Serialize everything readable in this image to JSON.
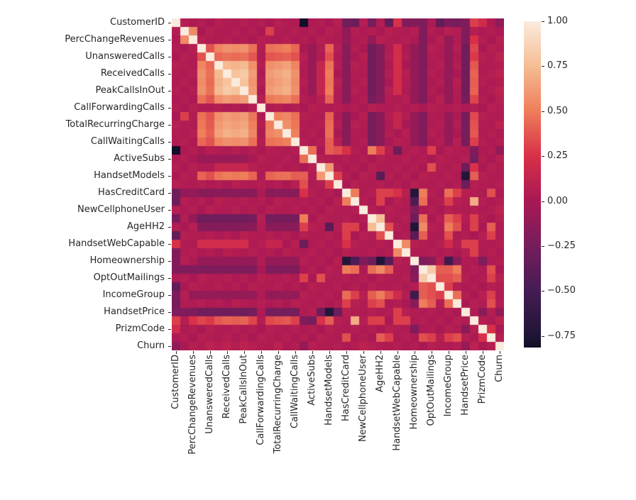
{
  "figure": {
    "background": "#ffffff",
    "tick_color": "#262626",
    "label_color": "#262626"
  },
  "chart_data": {
    "type": "heatmap",
    "title": "",
    "description": "Correlation matrix heatmap of telecom churn dataset features",
    "n": 39,
    "tick_every": 2,
    "tick_labels": [
      "CustomerID",
      "PercChangeRevenues",
      "UnansweredCalls",
      "ReceivedCalls",
      "PeakCallsInOut",
      "CallForwardingCalls",
      "TotalRecurringCharge",
      "CallWaitingCalls",
      "ActiveSubs",
      "HandsetModels",
      "HasCreditCard",
      "NewCellphoneUser",
      "AgeHH2",
      "HandsetWebCapable",
      "Homeownership",
      "OptOutMailings",
      "IncomeGroup",
      "HandsetPrice",
      "PrizmCode",
      "Churn"
    ],
    "vmin": -0.814,
    "vmax": 1.0,
    "colormap": {
      "name": "rocket",
      "stops": [
        {
          "v": -0.814,
          "color": "#120E26"
        },
        {
          "v": -0.75,
          "color": "#201537"
        },
        {
          "v": -0.5,
          "color": "#451C53"
        },
        {
          "v": -0.25,
          "color": "#761D5C"
        },
        {
          "v": 0.0,
          "color": "#A91855"
        },
        {
          "v": 0.25,
          "color": "#D83048"
        },
        {
          "v": 0.5,
          "color": "#EE7D5A"
        },
        {
          "v": 0.75,
          "color": "#F5BD94"
        },
        {
          "v": 1.0,
          "color": "#FAEBDD"
        }
      ]
    },
    "colorbar_ticks": [
      {
        "label": "1.00",
        "value": 1.0
      },
      {
        "label": "0.75",
        "value": 0.75
      },
      {
        "label": "0.50",
        "value": 0.5
      },
      {
        "label": "0.25",
        "value": 0.25
      },
      {
        "label": "0.00",
        "value": 0.0
      },
      {
        "label": "−0.25",
        "value": -0.25
      },
      {
        "label": "−0.50",
        "value": -0.5
      },
      {
        "label": "−0.75",
        "value": -0.75
      }
    ],
    "matrix_upper": [
      [
        1.0,
        0.06,
        0.02,
        0.05,
        0.01,
        0.07,
        0.04,
        0.03,
        0.06,
        0.02,
        0.05,
        0.01,
        0.07,
        0.04,
        0.03,
        -0.81,
        0.02,
        0.05,
        0.01,
        0.07,
        -0.28,
        -0.3,
        0.06,
        -0.25,
        0.05,
        -0.35,
        0.25,
        -0.2,
        -0.18,
        -0.2,
        0.02,
        -0.35,
        -0.22,
        -0.25,
        -0.2,
        0.3,
        0.2,
        0.02,
        -0.12
      ],
      [
        1.0,
        0.55,
        0.01,
        0.07,
        0.04,
        0.03,
        0.06,
        0.02,
        0.05,
        0.01,
        0.3,
        0.04,
        0.03,
        0.06,
        0.02,
        0.05,
        0.01,
        0.07,
        0.04,
        -0.12,
        0.06,
        0.02,
        0.05,
        0.01,
        0.07,
        0.04,
        0.03,
        0.06,
        -0.2,
        0.05,
        0.01,
        0.07,
        0.04,
        -0.2,
        0.06,
        0.02,
        0.05,
        0.01
      ],
      [
        1.0,
        0.07,
        0.04,
        0.03,
        0.06,
        0.02,
        0.05,
        0.01,
        0.07,
        0.04,
        0.03,
        0.06,
        0.02,
        0.05,
        0.01,
        0.07,
        0.04,
        0.03,
        -0.1,
        0.02,
        0.05,
        -0.1,
        0.07,
        0.04,
        0.03,
        0.06,
        0.02,
        -0.2,
        0.01,
        0.07,
        -0.1,
        0.03,
        -0.2,
        0.25,
        0.05,
        0.01,
        0.07
      ],
      [
        1.0,
        0.36,
        0.53,
        0.58,
        0.56,
        0.58,
        0.46,
        0.04,
        0.46,
        0.48,
        0.51,
        0.43,
        0.01,
        -0.08,
        0.04,
        0.42,
        0.06,
        -0.15,
        0.05,
        0.01,
        -0.28,
        -0.18,
        0.03,
        0.22,
        0.02,
        -0.1,
        -0.2,
        0.07,
        0.04,
        -0.1,
        0.06,
        -0.28,
        0.32,
        0.01,
        0.07,
        0.04
      ],
      [
        1.0,
        0.43,
        0.46,
        0.44,
        0.46,
        0.37,
        0.03,
        0.37,
        0.39,
        0.41,
        0.36,
        0.07,
        -0.08,
        0.03,
        0.35,
        0.02,
        -0.15,
        0.01,
        0.07,
        -0.28,
        -0.18,
        0.06,
        0.22,
        0.05,
        -0.1,
        -0.2,
        0.04,
        0.03,
        -0.1,
        0.02,
        -0.28,
        0.28,
        0.07,
        0.04,
        0.1
      ],
      [
        1.0,
        0.74,
        0.71,
        0.74,
        0.57,
        0.06,
        0.57,
        0.6,
        0.64,
        0.53,
        0.04,
        -0.08,
        0.15,
        0.47,
        0.05,
        -0.15,
        0.07,
        0.04,
        -0.28,
        -0.18,
        0.02,
        0.22,
        0.01,
        -0.1,
        -0.2,
        0.03,
        0.06,
        -0.1,
        0.05,
        -0.28,
        0.38,
        0.04,
        0.03,
        0.06
      ],
      [
        1.0,
        0.78,
        0.82,
        0.62,
        0.02,
        0.62,
        0.66,
        0.7,
        0.58,
        0.03,
        -0.08,
        0.15,
        0.5,
        0.01,
        -0.15,
        0.04,
        0.03,
        -0.28,
        -0.18,
        0.05,
        0.22,
        0.07,
        -0.1,
        -0.2,
        0.06,
        0.02,
        -0.1,
        0.01,
        -0.28,
        0.42,
        0.03,
        0.06,
        0.1
      ],
      [
        1.0,
        0.78,
        0.59,
        0.05,
        0.59,
        0.63,
        0.67,
        0.56,
        0.06,
        -0.08,
        0.15,
        0.48,
        0.07,
        -0.15,
        0.03,
        0.06,
        -0.28,
        -0.18,
        0.01,
        0.22,
        0.04,
        -0.1,
        -0.2,
        0.02,
        0.05,
        -0.1,
        0.07,
        -0.28,
        0.4,
        0.06,
        0.02,
        0.05
      ],
      [
        1.0,
        0.62,
        0.01,
        0.62,
        0.66,
        0.7,
        0.58,
        0.02,
        -0.08,
        0.15,
        0.5,
        0.04,
        -0.15,
        0.06,
        0.02,
        -0.28,
        -0.18,
        0.07,
        0.22,
        0.03,
        -0.1,
        -0.2,
        0.05,
        0.01,
        -0.1,
        0.04,
        -0.28,
        0.42,
        0.02,
        0.05,
        0.1
      ],
      [
        1.0,
        0.07,
        0.48,
        0.51,
        0.54,
        0.46,
        0.05,
        0.01,
        0.07,
        0.42,
        0.03,
        -0.15,
        0.02,
        0.05,
        -0.25,
        -0.15,
        0.04,
        0.03,
        0.06,
        -0.1,
        -0.2,
        0.01,
        0.07,
        -0.1,
        0.03,
        -0.25,
        0.32,
        0.05,
        0.01,
        0.07
      ],
      [
        1.0,
        0.03,
        0.06,
        0.02,
        0.05,
        0.01,
        0.07,
        0.04,
        0.03,
        0.06,
        0.02,
        0.05,
        0.01,
        0.07,
        0.04,
        0.03,
        0.06,
        0.02,
        0.05,
        0.01,
        0.07,
        0.04,
        0.03,
        0.06,
        0.02,
        0.05,
        0.01,
        0.07,
        0.04
      ],
      [
        1.0,
        0.51,
        0.54,
        0.46,
        0.07,
        0.04,
        0.03,
        0.42,
        0.02,
        -0.15,
        0.01,
        0.07,
        -0.25,
        -0.15,
        0.06,
        0.15,
        0.05,
        -0.1,
        -0.2,
        0.04,
        0.03,
        -0.1,
        0.02,
        -0.25,
        0.33,
        0.07,
        0.04,
        0.03
      ],
      [
        1.0,
        0.57,
        0.48,
        0.04,
        0.03,
        0.06,
        0.45,
        0.05,
        -0.15,
        0.07,
        0.04,
        -0.25,
        -0.15,
        0.02,
        0.15,
        0.01,
        -0.1,
        -0.2,
        0.03,
        0.06,
        -0.1,
        0.05,
        -0.25,
        0.36,
        0.04,
        0.03,
        0.1
      ],
      [
        1.0,
        0.51,
        0.03,
        0.06,
        0.02,
        0.46,
        0.01,
        -0.15,
        0.04,
        0.03,
        -0.25,
        -0.15,
        0.05,
        0.01,
        0.07,
        -0.1,
        -0.2,
        0.06,
        0.02,
        -0.1,
        0.01,
        -0.25,
        0.38,
        0.03,
        0.06,
        0.02
      ],
      [
        1.0,
        0.06,
        0.02,
        0.05,
        0.4,
        0.07,
        -0.15,
        0.03,
        0.06,
        -0.25,
        -0.15,
        0.01,
        0.07,
        0.04,
        -0.1,
        -0.2,
        0.02,
        0.05,
        -0.1,
        0.07,
        -0.25,
        0.3,
        0.06,
        0.02,
        0.05
      ],
      [
        1.0,
        0.45,
        0.01,
        0.4,
        0.35,
        0.25,
        0.06,
        0.02,
        0.5,
        0.3,
        0.07,
        -0.3,
        0.03,
        0.06,
        0.02,
        0.3,
        0.01,
        0.07,
        0.04,
        0.03,
        -0.2,
        0.02,
        0.05,
        -0.1
      ],
      [
        1.0,
        0.07,
        0.04,
        0.03,
        0.06,
        0.02,
        0.05,
        0.01,
        0.07,
        0.04,
        0.03,
        0.06,
        0.02,
        0.05,
        0.01,
        0.07,
        0.04,
        0.03,
        0.06,
        -0.25,
        0.05,
        0.01,
        0.07
      ],
      [
        1.0,
        0.6,
        0.06,
        0.02,
        0.05,
        0.01,
        0.07,
        0.04,
        0.03,
        0.06,
        0.02,
        0.05,
        0.01,
        0.35,
        0.04,
        0.03,
        0.06,
        -0.3,
        0.25,
        0.01,
        0.07,
        0.04
      ],
      [
        1.0,
        0.3,
        0.05,
        0.01,
        0.07,
        0.04,
        -0.4,
        0.06,
        0.02,
        0.05,
        0.01,
        0.07,
        0.04,
        0.03,
        0.06,
        0.02,
        -0.72,
        0.4,
        0.07,
        0.04,
        0.03
      ],
      [
        1.0,
        0.01,
        0.07,
        0.04,
        0.03,
        0.06,
        0.02,
        0.05,
        0.01,
        0.07,
        0.04,
        0.03,
        0.06,
        0.02,
        0.05,
        -0.3,
        0.07,
        0.04,
        0.03,
        0.06
      ],
      [
        1.0,
        0.5,
        0.03,
        0.06,
        0.3,
        0.3,
        0.25,
        0.07,
        -0.72,
        0.5,
        0.06,
        0.02,
        0.45,
        0.3,
        0.07,
        0.04,
        0.03,
        0.35,
        0.02
      ],
      [
        1.0,
        0.06,
        0.02,
        0.3,
        0.01,
        0.07,
        0.04,
        -0.45,
        0.45,
        0.02,
        0.05,
        0.3,
        0.07,
        0.04,
        0.68,
        0.06,
        0.02,
        0.05
      ],
      [
        1.0,
        0.05,
        0.01,
        0.07,
        0.04,
        0.03,
        -0.2,
        0.02,
        0.05,
        0.01,
        0.07,
        0.04,
        0.03,
        0.06,
        0.02,
        0.05,
        0.1
      ],
      [
        1.0,
        0.75,
        0.04,
        0.03,
        0.06,
        -0.3,
        0.45,
        0.01,
        0.07,
        0.4,
        0.3,
        0.06,
        0.3,
        0.05,
        0.01,
        0.07
      ],
      [
        1.0,
        0.35,
        0.06,
        0.02,
        -0.75,
        0.55,
        0.07,
        0.04,
        0.5,
        0.35,
        0.02,
        0.3,
        0.01,
        0.4,
        0.04
      ],
      [
        1.0,
        0.02,
        0.05,
        -0.4,
        0.4,
        0.04,
        0.03,
        0.35,
        0.02,
        0.05,
        0.01,
        0.07,
        0.3,
        0.03
      ],
      [
        1.0,
        0.55,
        0.07,
        0.04,
        0.03,
        0.06,
        0.2,
        0.05,
        0.3,
        0.3,
        0.04,
        0.03,
        0.06
      ],
      [
        1.0,
        0.04,
        0.03,
        0.06,
        0.02,
        0.05,
        0.01,
        0.07,
        0.3,
        0.03,
        0.06,
        0.02
      ],
      [
        1.0,
        -0.2,
        -0.15,
        0.05,
        -0.55,
        -0.15,
        0.04,
        0.03,
        -0.2,
        0.02,
        0.05
      ],
      [
        1.0,
        0.82,
        0.4,
        0.4,
        0.5,
        0.03,
        0.06,
        0.02,
        0.35,
        0.01
      ],
      [
        1.0,
        0.35,
        0.35,
        0.4,
        0.06,
        0.02,
        0.05,
        0.3,
        0.07
      ],
      [
        1.0,
        0.3,
        0.06,
        0.02,
        0.05,
        0.01,
        0.07,
        0.04
      ],
      [
        1.0,
        0.45,
        0.05,
        0.01,
        0.07,
        0.3,
        0.03
      ],
      [
        1.0,
        0.01,
        0.07,
        0.04,
        0.35,
        0.06
      ],
      [
        1.0,
        0.04,
        -0.15,
        0.06,
        -0.1
      ],
      [
        1.0,
        0.06,
        0.02,
        0.1
      ],
      [
        1.0,
        0.25,
        0.01
      ],
      [
        1.0,
        0.07
      ],
      [
        1.0
      ]
    ]
  }
}
